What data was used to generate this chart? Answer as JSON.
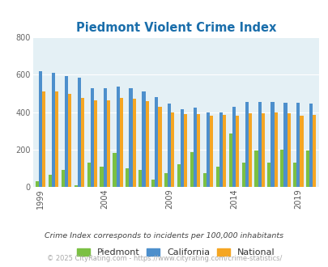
{
  "title": "Piedmont Violent Crime Index",
  "title_color": "#1a6eab",
  "years": [
    1999,
    2000,
    2001,
    2002,
    2003,
    2004,
    2005,
    2006,
    2007,
    2008,
    2009,
    2010,
    2011,
    2012,
    2013,
    2014,
    2015,
    2016,
    2017,
    2018,
    2019,
    2020
  ],
  "piedmont": [
    30,
    65,
    90,
    10,
    130,
    110,
    180,
    100,
    90,
    40,
    75,
    120,
    185,
    75,
    110,
    285,
    130,
    195,
    130,
    200,
    130,
    195
  ],
  "california": [
    620,
    610,
    595,
    585,
    530,
    530,
    535,
    530,
    510,
    480,
    445,
    415,
    425,
    400,
    400,
    430,
    455,
    455,
    455,
    450,
    450,
    445
  ],
  "national": [
    510,
    510,
    500,
    475,
    465,
    465,
    475,
    470,
    460,
    430,
    400,
    390,
    390,
    380,
    385,
    380,
    395,
    395,
    400,
    395,
    380,
    385
  ],
  "bar_colors": {
    "piedmont": "#7bc043",
    "california": "#4d8fcc",
    "national": "#f5a623"
  },
  "background_color": "#e4f0f5",
  "ylim": [
    0,
    800
  ],
  "yticks": [
    0,
    200,
    400,
    600,
    800
  ],
  "xlabel_ticks": [
    1999,
    2004,
    2009,
    2014,
    2019
  ],
  "legend_labels": [
    "Piedmont",
    "California",
    "National"
  ],
  "footnote1": "Crime Index corresponds to incidents per 100,000 inhabitants",
  "footnote2": "© 2025 CityRating.com - https://www.cityrating.com/crime-statistics/",
  "footnote1_color": "#444444",
  "footnote2_color": "#aaaaaa"
}
